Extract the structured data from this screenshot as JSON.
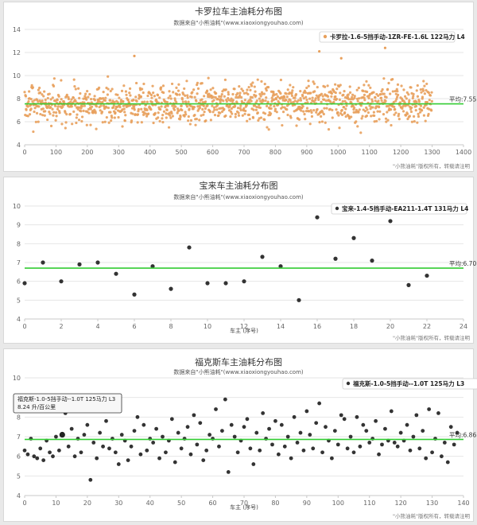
{
  "charts": [
    {
      "title": "卡罗拉车主油耗分布图",
      "subtitle": "数据来自\"小熊油耗\"(www.xiaoxiongyouhao.com)",
      "legend": "卡罗拉-1.6-5挡手动-1ZR-FE-1.6L 122马力 L4",
      "avg_label": "平均:7.55",
      "xlabel": "",
      "credit": "\"小熊油耗\"版权所有，转载请注明",
      "x_ticks": [
        "0",
        "100",
        "200",
        "300",
        "400",
        "500",
        "600",
        "700",
        "800",
        "900",
        "1000",
        "1100",
        "1200",
        "1300",
        "1400"
      ],
      "y_ticks": [
        "4",
        "6",
        "8",
        "10",
        "12",
        "14"
      ]
    },
    {
      "title": "宝来车主油耗分布图",
      "subtitle": "数据来自\"小熊油耗\"(www.xiaoxiongyouhao.com)",
      "legend": "宝来-1.4-5挡手动-EA211-1.4T 131马力 L4",
      "avg_label": "平均:6.70",
      "xlabel": "车主 (序号)",
      "credit": "\"小熊油耗\"版权所有，转载请注明",
      "x_ticks": [
        "0",
        "2",
        "4",
        "6",
        "8",
        "10",
        "12",
        "14",
        "16",
        "18",
        "20",
        "22",
        "24"
      ],
      "y_ticks": [
        "4",
        "5",
        "6",
        "7",
        "8",
        "9",
        "10"
      ]
    },
    {
      "title": "福克斯车主油耗分布图",
      "subtitle": "数据来自\"小熊油耗\"(www.xiaoxiongyouhao.com)",
      "legend": "福克斯-1.0-5挡手动--1.0T 125马力 L3",
      "avg_label": "平均:6.86",
      "xlabel": "车主 (序号)",
      "credit": "\"小熊油耗\"版权所有，转载请注明",
      "x_ticks": [
        "0",
        "10",
        "20",
        "30",
        "40",
        "50",
        "60",
        "70",
        "80",
        "90",
        "100",
        "110",
        "120",
        "130",
        "140"
      ],
      "y_ticks": [
        "4",
        "5",
        "6",
        "7",
        "8",
        "9",
        "10"
      ],
      "tooltip": {
        "line1": "福克斯-1.0-5挡手动--1.0T 125马力 L3",
        "line2": "8.24 升/百公里"
      }
    }
  ],
  "colors": {
    "point_orange": "#e8a05c",
    "point_dark": "#333333",
    "avg_line": "#33cc33",
    "grid": "#e6e6e6"
  },
  "chart_data": [
    {
      "type": "scatter",
      "title": "卡罗拉车主油耗分布图",
      "xlim": [
        0,
        1400
      ],
      "ylim": [
        4,
        14
      ],
      "average": 7.55,
      "n_points": 1300,
      "y_mean": 7.55,
      "y_sd": 0.85,
      "y_min": 5.0,
      "y_max": 12.4,
      "outliers": [
        [
          350,
          11.7
        ],
        [
          940,
          12.1
        ],
        [
          1150,
          12.4
        ],
        [
          1010,
          11.5
        ]
      ],
      "series": [
        {
          "name": "卡罗拉-1.6-5挡手动-1ZR-FE-1.6L 122马力 L4"
        }
      ]
    },
    {
      "type": "scatter",
      "title": "宝来车主油耗分布图",
      "xlim": [
        0,
        24
      ],
      "ylim": [
        4,
        10
      ],
      "average": 6.7,
      "series": [
        {
          "name": "宝来-1.4-5挡手动-EA211-1.4T 131马力 L4",
          "x": [
            0,
            1,
            2,
            3,
            4,
            5,
            6,
            7,
            8,
            9,
            10,
            11,
            12,
            13,
            14,
            15,
            16,
            17,
            18,
            19,
            20,
            21,
            22
          ],
          "y": [
            5.9,
            7.0,
            6.0,
            6.9,
            7.0,
            6.4,
            5.3,
            6.8,
            5.6,
            7.8,
            5.9,
            5.9,
            6.0,
            7.3,
            6.8,
            5.0,
            9.4,
            7.2,
            8.3,
            7.1,
            9.2,
            5.8,
            6.3
          ]
        }
      ]
    },
    {
      "type": "scatter",
      "title": "福克斯车主油耗分布图",
      "xlim": [
        0,
        140
      ],
      "ylim": [
        4,
        10
      ],
      "average": 6.86,
      "series": [
        {
          "name": "福克斯-1.0-5挡手动--1.0T 125马力 L3",
          "x": [
            0,
            1,
            2,
            3,
            4,
            5,
            6,
            7,
            8,
            9,
            10,
            11,
            12,
            13,
            14,
            15,
            16,
            17,
            18,
            19,
            20,
            21,
            22,
            23,
            24,
            25,
            26,
            27,
            28,
            29,
            30,
            31,
            32,
            33,
            34,
            35,
            36,
            37,
            38,
            39,
            40,
            41,
            42,
            43,
            44,
            45,
            46,
            47,
            48,
            49,
            50,
            51,
            52,
            53,
            54,
            55,
            56,
            57,
            58,
            59,
            60,
            61,
            62,
            63,
            64,
            65,
            66,
            67,
            68,
            69,
            70,
            71,
            72,
            73,
            74,
            75,
            76,
            77,
            78,
            79,
            80,
            81,
            82,
            83,
            84,
            85,
            86,
            87,
            88,
            89,
            90,
            91,
            92,
            93,
            94,
            95,
            96,
            97,
            98,
            99,
            100,
            101,
            102,
            103,
            104,
            105,
            106,
            107,
            108,
            109,
            110,
            111,
            112,
            113,
            114,
            115,
            116,
            117,
            118,
            119,
            120,
            121,
            122,
            123,
            124,
            125,
            126,
            127,
            128,
            129,
            130,
            131,
            132,
            133,
            134,
            135,
            136,
            137,
            138
          ],
          "y": [
            6.3,
            6.1,
            6.9,
            6.0,
            5.9,
            6.4,
            5.8,
            6.8,
            6.2,
            6.0,
            7.0,
            6.3,
            7.1,
            8.2,
            6.5,
            7.4,
            6.0,
            6.9,
            6.2,
            7.1,
            7.6,
            4.8,
            6.7,
            5.9,
            7.2,
            6.5,
            7.8,
            6.4,
            6.9,
            6.2,
            5.6,
            7.1,
            6.8,
            5.8,
            6.5,
            7.3,
            8.0,
            6.1,
            7.6,
            6.3,
            6.9,
            6.7,
            7.4,
            5.9,
            7.0,
            6.2,
            6.8,
            7.9,
            5.7,
            7.2,
            6.4,
            6.9,
            7.5,
            6.1,
            8.1,
            6.6,
            7.7,
            5.8,
            6.3,
            7.1,
            6.9,
            8.4,
            6.5,
            7.3,
            8.9,
            5.2,
            7.6,
            7.0,
            6.2,
            6.8,
            7.5,
            7.9,
            6.4,
            5.6,
            7.2,
            6.3,
            8.2,
            6.9,
            7.4,
            6.6,
            7.8,
            6.1,
            7.6,
            6.5,
            7.0,
            5.9,
            8.0,
            6.7,
            7.2,
            6.3,
            8.3,
            7.1,
            6.4,
            7.7,
            8.7,
            6.2,
            7.5,
            6.8,
            5.9,
            7.3,
            6.6,
            8.1,
            7.9,
            6.4,
            7.0,
            6.2,
            8.0,
            6.5,
            7.6,
            7.3,
            6.7,
            6.9,
            7.8,
            6.1,
            6.6,
            7.4,
            6.8,
            8.3,
            6.7,
            6.5,
            7.2,
            6.8,
            7.6,
            6.3,
            7.0,
            8.1,
            6.4,
            7.3,
            5.9,
            8.4,
            6.2,
            6.9,
            8.2,
            6.0,
            6.7,
            5.7,
            7.5,
            6.6,
            7.2
          ]
        }
      ]
    }
  ]
}
